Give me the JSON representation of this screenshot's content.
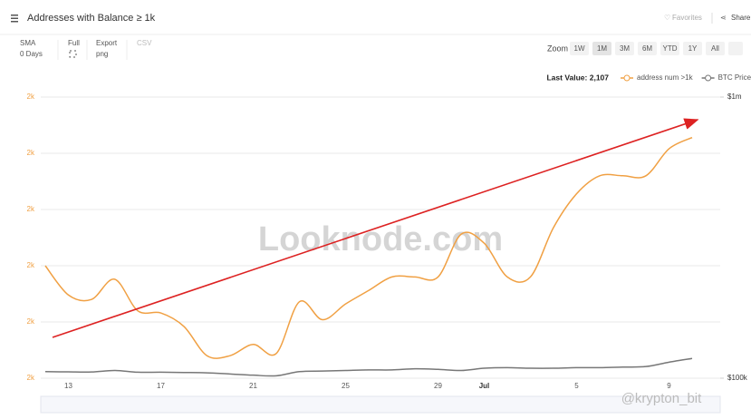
{
  "header": {
    "title": "Addresses with Balance ≥ 1k",
    "favorites": "Favorites",
    "share": "Share"
  },
  "toolbar": {
    "sma": "SMA",
    "sma_value": "0 Days",
    "full": "Full",
    "export": "Export",
    "export_value": "png",
    "csv": "CSV",
    "zoom": "Zoom",
    "zoom_options": [
      "1W",
      "1M",
      "3M",
      "6M",
      "YTD",
      "1Y",
      "All"
    ]
  },
  "watermark": "Looknode.com",
  "credit": "@krypton_bit",
  "chart_data": {
    "type": "line",
    "last_value": "Last Value: 2,107",
    "categories": [
      null,
      "13",
      null,
      null,
      null,
      "17",
      null,
      null,
      null,
      "21",
      null,
      null,
      null,
      "25",
      null,
      null,
      null,
      "29",
      null,
      "Jul",
      null,
      null,
      null,
      "5",
      null,
      null,
      null,
      "9",
      null
    ],
    "series": [
      {
        "name": "address num >1k",
        "color": "#f0a043",
        "values": [
          2050,
          2037,
          2035,
          2044,
          2030,
          2029,
          2023,
          2010,
          2010,
          2015,
          2011,
          2034,
          2026,
          2033,
          2039,
          2045,
          2045,
          2045,
          2064,
          2060,
          2045,
          2045,
          2067,
          2082,
          2090,
          2090,
          2090,
          2102,
          2107
        ]
      },
      {
        "name": "BTC Price",
        "color": "#777777",
        "axis": "y2",
        "values": [
          105500,
          105300,
          105200,
          106500,
          105000,
          105000,
          104800,
          104500,
          103500,
          102500,
          102000,
          105500,
          106000,
          106500,
          107000,
          107000,
          108000,
          107500,
          106500,
          108500,
          109000,
          108500,
          108500,
          109000,
          109000,
          109500,
          110000,
          114000,
          117500
        ]
      }
    ],
    "ylim": [
      2000,
      2125
    ],
    "yticks": [
      {
        "value": 2000,
        "label": "2k"
      },
      {
        "value": 2025,
        "label": "2k"
      },
      {
        "value": 2050,
        "label": "2k"
      },
      {
        "value": 2075,
        "label": "2k"
      },
      {
        "value": 2100,
        "label": "2k"
      },
      {
        "value": 2125,
        "label": "2k"
      }
    ],
    "y2lim": [
      100000,
      1000000
    ],
    "y2log": true,
    "y2ticks": [
      {
        "value": 100000,
        "label": "$100k"
      },
      {
        "value": 1000000,
        "label": "$1m"
      }
    ],
    "grid": true
  }
}
